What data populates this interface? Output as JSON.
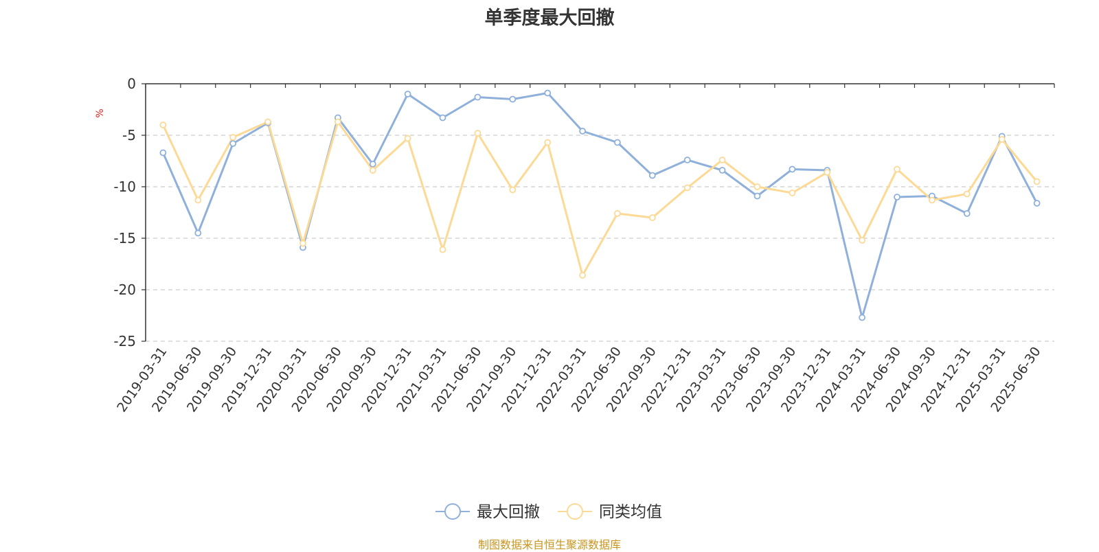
{
  "chart_data": {
    "type": "line",
    "title": "单季度最大回撤",
    "ylabel": "%",
    "ylim": [
      -25,
      0
    ],
    "yticks": [
      0,
      -5,
      -10,
      -15,
      -20,
      -25
    ],
    "grid": true,
    "legend_position": "bottom-center",
    "categories": [
      "2019-03-31",
      "2019-06-30",
      "2019-09-30",
      "2019-12-31",
      "2020-03-31",
      "2020-06-30",
      "2020-09-30",
      "2020-12-31",
      "2021-03-31",
      "2021-06-30",
      "2021-09-30",
      "2021-12-31",
      "2022-03-31",
      "2022-06-30",
      "2022-09-30",
      "2022-12-31",
      "2023-03-31",
      "2023-06-30",
      "2023-09-30",
      "2023-12-31",
      "2024-03-31",
      "2024-06-30",
      "2024-09-30",
      "2024-12-31",
      "2025-03-31",
      "2025-06-30"
    ],
    "series": [
      {
        "name": "最大回撤",
        "color": "#8eb0db",
        "values": [
          -6.7,
          -14.5,
          -5.8,
          -3.8,
          -15.9,
          -3.3,
          -7.8,
          -1.0,
          -3.3,
          -1.3,
          -1.5,
          -0.9,
          -4.6,
          -5.7,
          -8.9,
          -7.4,
          -8.4,
          -10.9,
          -8.3,
          -8.4,
          -22.7,
          -11.0,
          -10.9,
          -12.6,
          -5.1,
          -11.6
        ]
      },
      {
        "name": "同类均值",
        "color": "#fcd995",
        "values": [
          -4.0,
          -11.3,
          -5.2,
          -3.7,
          -15.5,
          -3.7,
          -8.4,
          -5.3,
          -16.1,
          -4.8,
          -10.3,
          -5.7,
          -18.6,
          -12.6,
          -13.0,
          -10.1,
          -7.4,
          -10.0,
          -10.6,
          -8.6,
          -15.2,
          -8.3,
          -11.3,
          -10.7,
          -5.4,
          -9.5
        ]
      }
    ]
  },
  "footer": {
    "source_text": "制图数据来自恒生聚源数据库"
  }
}
